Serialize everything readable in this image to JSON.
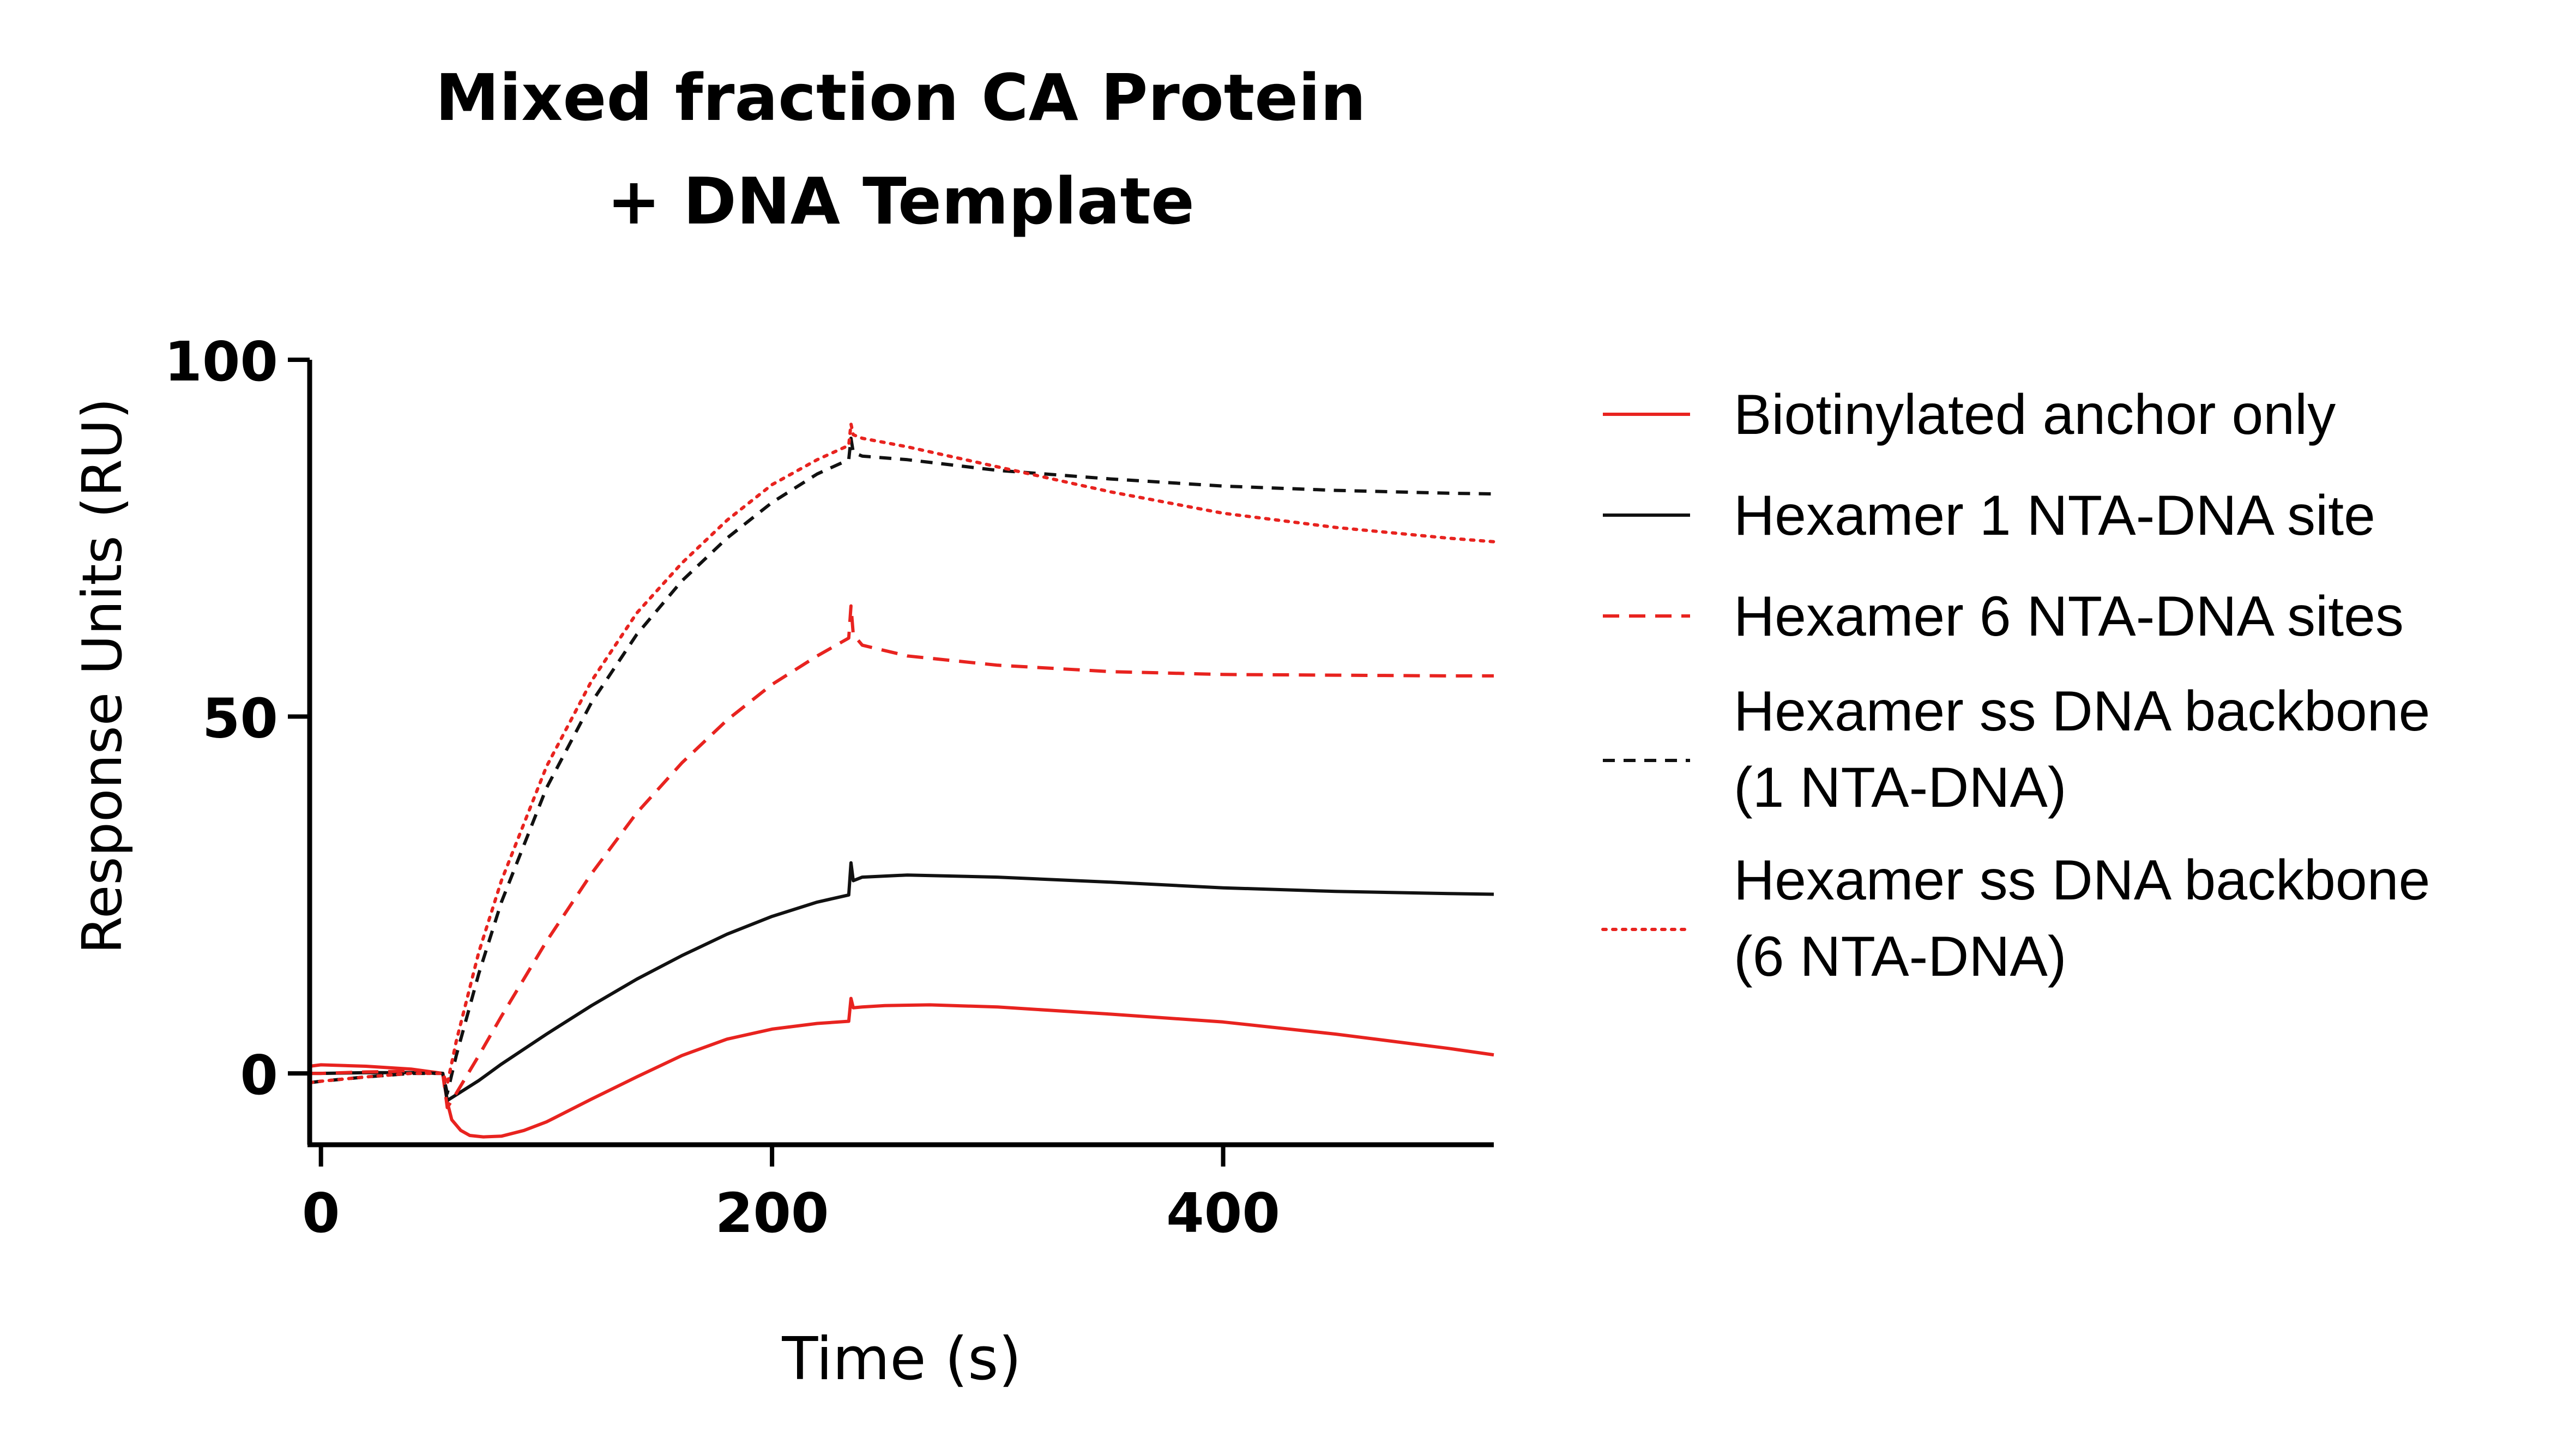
{
  "chart_data": {
    "type": "line",
    "title": [
      "Mixed fraction CA Protein",
      "+ DNA Template"
    ],
    "xlabel": "Time (s)",
    "ylabel": "Response Units (RU)",
    "xlim": [
      -5,
      520
    ],
    "ylim": [
      -10,
      100
    ],
    "xticks": [
      0,
      200,
      400
    ],
    "yticks": [
      0,
      50,
      100
    ],
    "xtick_labels": [
      "0",
      "200",
      "400"
    ],
    "ytick_labels": [
      "0",
      "50",
      "100"
    ],
    "grid": false,
    "legend_position": "right",
    "series": [
      {
        "name": "Biotinylated anchor only",
        "color": "#e8231f",
        "dash": "solid",
        "x": [
          -5,
          0,
          20,
          40,
          54,
          56,
          58,
          62,
          66,
          72,
          80,
          90,
          100,
          120,
          140,
          160,
          180,
          200,
          220,
          234,
          235,
          236,
          240,
          250,
          270,
          300,
          350,
          400,
          450,
          500,
          520
        ],
        "y": [
          1,
          1.2,
          1,
          0.6,
          0,
          -4,
          -6.5,
          -8,
          -8.7,
          -8.9,
          -8.8,
          -8,
          -6.8,
          -3.6,
          -0.5,
          2.5,
          4.8,
          6.2,
          7,
          7.3,
          10.5,
          9.2,
          9.3,
          9.5,
          9.6,
          9.3,
          8.3,
          7.2,
          5.5,
          3.5,
          2.6
        ]
      },
      {
        "name": "Hexamer 1 NTA-DNA site",
        "color": "#111111",
        "dash": "solid",
        "x": [
          -5,
          0,
          20,
          40,
          54,
          56,
          60,
          70,
          80,
          100,
          120,
          140,
          160,
          180,
          200,
          220,
          234,
          235,
          236,
          240,
          260,
          300,
          350,
          400,
          450,
          500,
          520
        ],
        "y": [
          0,
          0,
          0.1,
          0.1,
          0,
          -3.8,
          -3,
          -1,
          1.3,
          5.5,
          9.5,
          13.2,
          16.5,
          19.5,
          22,
          24,
          25,
          29.5,
          27,
          27.5,
          27.8,
          27.5,
          26.8,
          26,
          25.5,
          25.2,
          25.1
        ]
      },
      {
        "name": "Hexamer 6 NTA-DNA sites",
        "color": "#e8231f",
        "dash": "dashed",
        "x": [
          -5,
          0,
          20,
          40,
          54,
          56,
          60,
          70,
          80,
          100,
          120,
          140,
          160,
          180,
          200,
          220,
          234,
          235,
          236,
          240,
          260,
          300,
          350,
          400,
          450,
          500,
          520
        ],
        "y": [
          0,
          0,
          0.2,
          0.3,
          0,
          -4.8,
          -2.8,
          2.5,
          8,
          18.5,
          28,
          36.5,
          43.5,
          49.5,
          54.5,
          58.5,
          61,
          65.5,
          61.5,
          60,
          58.5,
          57.2,
          56.3,
          55.9,
          55.8,
          55.7,
          55.7
        ]
      },
      {
        "name": "Hexamer ss DNA backbone (1 NTA-DNA)",
        "color": "#111111",
        "dash": "short-dashed",
        "x": [
          -5,
          0,
          20,
          40,
          54,
          56,
          60,
          70,
          80,
          100,
          120,
          140,
          160,
          180,
          200,
          220,
          234,
          235,
          236,
          240,
          260,
          300,
          350,
          400,
          450,
          500,
          520
        ],
        "y": [
          -1.3,
          -1.1,
          -0.5,
          0,
          0,
          -2.8,
          2.5,
          14,
          24,
          40,
          52,
          61.5,
          69,
          75,
          80,
          84,
          86,
          89,
          87,
          86.5,
          86,
          84.5,
          83.3,
          82.3,
          81.7,
          81.3,
          81.2
        ]
      },
      {
        "name": "Hexamer ss DNA backbone (6 NTA-DNA)",
        "color": "#e8231f",
        "dash": "dotted",
        "x": [
          -5,
          0,
          20,
          40,
          54,
          56,
          60,
          70,
          80,
          100,
          120,
          140,
          160,
          180,
          200,
          220,
          234,
          235,
          236,
          240,
          260,
          300,
          350,
          400,
          450,
          500,
          520
        ],
        "y": [
          -1.3,
          -1.1,
          -0.5,
          0,
          0,
          -1.5,
          4.5,
          17,
          27,
          43,
          55,
          64.5,
          71.5,
          77.5,
          82.5,
          86,
          88,
          91,
          89.5,
          89,
          87.8,
          85,
          81.5,
          78.5,
          76.5,
          75,
          74.5
        ]
      }
    ],
    "legend": {
      "entries": [
        {
          "lines": [
            "Biotinylated anchor only"
          ]
        },
        {
          "lines": [
            "Hexamer 1 NTA-DNA site"
          ]
        },
        {
          "lines": [
            "Hexamer 6 NTA-DNA sites"
          ]
        },
        {
          "lines": [
            "Hexamer ss DNA backbone",
            "(1 NTA-DNA)"
          ]
        },
        {
          "lines": [
            "Hexamer ss DNA backbone",
            "(6 NTA-DNA)"
          ]
        }
      ]
    }
  }
}
